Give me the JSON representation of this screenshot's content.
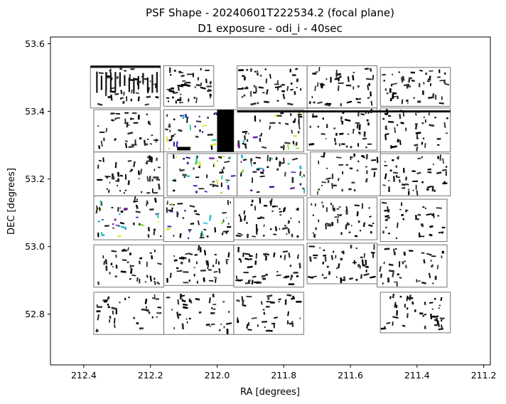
{
  "chart_data": {
    "type": "scatter",
    "title": "PSF Shape - 20240601T222534.2 (focal plane)",
    "subtitle": "D1 exposure - odi_i - 40sec",
    "xlabel": "RA [degrees]",
    "ylabel": "DEC [degrees]",
    "xlim": [
      212.5,
      211.18
    ],
    "ylim": [
      52.65,
      53.62
    ],
    "x_inverted": true,
    "xticks": [
      212.4,
      212.2,
      212.0,
      211.8,
      211.6,
      211.4,
      211.2
    ],
    "xtick_labels": [
      "212.4",
      "212.2",
      "212.0",
      "211.8",
      "211.6",
      "211.4",
      "211.2"
    ],
    "yticks": [
      52.8,
      53.0,
      53.2,
      53.4,
      53.6
    ],
    "ytick_labels": [
      "52.8",
      "53.0",
      "53.2",
      "53.4",
      "53.6"
    ],
    "grid": false,
    "legend": "none",
    "marker": "whisker",
    "cell_color": "#808080",
    "whisker_colors": [
      "#000000",
      "#1a1a1a",
      "#333333",
      "#3b2fbf",
      "#2222aa",
      "#1fb8d6",
      "#33cc99",
      "#88dd33",
      "#6a1b9a",
      "#e6e033"
    ],
    "detector_cells": [
      {
        "ra": [
          212.38,
          212.17
        ],
        "dec": [
          53.41,
          53.535
        ]
      },
      {
        "ra": [
          212.16,
          212.01
        ],
        "dec": [
          53.415,
          53.535
        ]
      },
      {
        "ra": [
          211.94,
          211.73
        ],
        "dec": [
          53.41,
          53.535
        ]
      },
      {
        "ra": [
          211.73,
          211.52
        ],
        "dec": [
          53.41,
          53.535
        ]
      },
      {
        "ra": [
          211.51,
          211.3
        ],
        "dec": [
          53.415,
          53.53
        ]
      },
      {
        "ra": [
          212.37,
          212.17
        ],
        "dec": [
          53.28,
          53.405
        ]
      },
      {
        "ra": [
          212.16,
          211.95
        ],
        "dec": [
          53.28,
          53.405
        ]
      },
      {
        "ra": [
          211.95,
          211.74
        ],
        "dec": [
          53.28,
          53.405
        ]
      },
      {
        "ra": [
          211.73,
          211.52
        ],
        "dec": [
          53.285,
          53.41
        ]
      },
      {
        "ra": [
          211.51,
          211.3
        ],
        "dec": [
          53.28,
          53.41
        ]
      },
      {
        "ra": [
          212.37,
          212.16
        ],
        "dec": [
          53.15,
          53.28
        ]
      },
      {
        "ra": [
          212.15,
          211.94
        ],
        "dec": [
          53.15,
          53.275
        ]
      },
      {
        "ra": [
          211.94,
          211.73
        ],
        "dec": [
          53.15,
          53.275
        ]
      },
      {
        "ra": [
          211.72,
          211.51
        ],
        "dec": [
          53.15,
          53.28
        ]
      },
      {
        "ra": [
          211.51,
          211.3
        ],
        "dec": [
          53.15,
          53.275
        ]
      },
      {
        "ra": [
          212.37,
          212.16
        ],
        "dec": [
          53.02,
          53.15
        ]
      },
      {
        "ra": [
          212.16,
          211.95
        ],
        "dec": [
          53.015,
          53.145
        ]
      },
      {
        "ra": [
          211.95,
          211.74
        ],
        "dec": [
          53.02,
          53.145
        ]
      },
      {
        "ra": [
          211.73,
          211.52
        ],
        "dec": [
          53.02,
          53.145
        ]
      },
      {
        "ra": [
          211.51,
          211.31
        ],
        "dec": [
          53.015,
          53.14
        ]
      },
      {
        "ra": [
          212.37,
          212.16
        ],
        "dec": [
          52.88,
          53.005
        ]
      },
      {
        "ra": [
          212.16,
          211.95
        ],
        "dec": [
          52.885,
          53.005
        ]
      },
      {
        "ra": [
          211.95,
          211.74
        ],
        "dec": [
          52.88,
          53.005
        ]
      },
      {
        "ra": [
          211.73,
          211.52
        ],
        "dec": [
          52.89,
          53.01
        ]
      },
      {
        "ra": [
          211.52,
          211.31
        ],
        "dec": [
          52.88,
          53.005
        ]
      },
      {
        "ra": [
          212.37,
          212.16
        ],
        "dec": [
          52.74,
          52.865
        ]
      },
      {
        "ra": [
          212.16,
          211.95
        ],
        "dec": [
          52.74,
          52.865
        ]
      },
      {
        "ra": [
          211.95,
          211.74
        ],
        "dec": [
          52.74,
          52.865
        ]
      },
      {
        "ra": [
          211.51,
          211.3
        ],
        "dec": [
          52.745,
          52.865
        ]
      }
    ]
  }
}
